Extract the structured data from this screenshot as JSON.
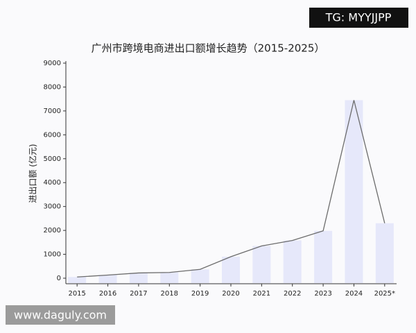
{
  "chart_data": {
    "type": "bar-line",
    "title": "广州市跨境电商进出口额增长趋势（2015-2025）",
    "y_label": "进出口额 (亿元)",
    "categories": [
      "2015",
      "2016",
      "2017",
      "2018",
      "2019",
      "2020",
      "2021",
      "2022",
      "2023",
      "2024",
      "2025*"
    ],
    "values": [
      50,
      130,
      220,
      240,
      370,
      900,
      1350,
      1580,
      1980,
      7450,
      2300
    ],
    "bar_color": "#e6e8fa",
    "line_color": "#6b6b6b",
    "ylim": [
      0,
      9000
    ],
    "yticks": [
      0,
      1000,
      2000,
      3000,
      4000,
      5000,
      6000,
      7000,
      8000,
      9000
    ]
  },
  "watermarks": {
    "top_right": "TG: MYYJJPP",
    "bottom_left": "www.daguly.com"
  }
}
